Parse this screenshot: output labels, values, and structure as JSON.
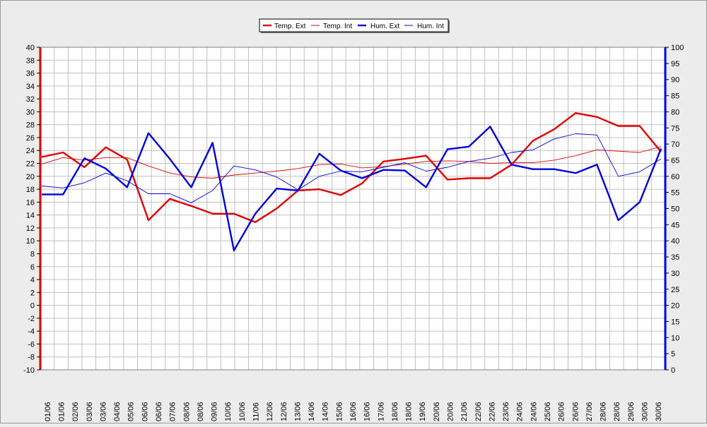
{
  "chart_data": {
    "type": "line",
    "categories": [
      "01/06",
      "01/06",
      "02/06",
      "03/06",
      "03/06",
      "04/06",
      "05/06",
      "06/06",
      "06/06",
      "07/06",
      "08/06",
      "08/06",
      "09/06",
      "10/06",
      "10/06",
      "11/06",
      "12/06",
      "12/06",
      "13/06",
      "14/06",
      "14/06",
      "15/06",
      "16/06",
      "16/06",
      "17/06",
      "18/06",
      "18/06",
      "19/06",
      "20/06",
      "20/06",
      "21/06",
      "22/06",
      "22/06",
      "23/06",
      "24/06",
      "24/06",
      "25/06",
      "26/06",
      "26/06",
      "27/06",
      "28/06",
      "28/06",
      "29/06",
      "30/06",
      "30/06"
    ],
    "x_label_step": 1,
    "y_left": {
      "min": -10,
      "max": 40,
      "step": 2
    },
    "y_right": {
      "min": 0,
      "max": 100,
      "step": 5
    },
    "grid": true,
    "legend_position": "top-center",
    "series": [
      {
        "name": "Temp. Ext",
        "axis": "left",
        "color": "#e00000",
        "thick": true,
        "points": [
          [
            0,
            23
          ],
          [
            1,
            23.7
          ],
          [
            2,
            21.4
          ],
          [
            3,
            24.5
          ],
          [
            4,
            22.6
          ],
          [
            5,
            13.2
          ],
          [
            6,
            16.5
          ],
          [
            7,
            15.4
          ],
          [
            8,
            14.2
          ],
          [
            9,
            14.2
          ],
          [
            10,
            12.9
          ],
          [
            11,
            15
          ],
          [
            12,
            17.8
          ],
          [
            13,
            18
          ],
          [
            14,
            17.1
          ],
          [
            15,
            18.9
          ],
          [
            16,
            22.3
          ],
          [
            17,
            22.7
          ],
          [
            18,
            23.2
          ],
          [
            19,
            19.5
          ],
          [
            20,
            19.7
          ],
          [
            21,
            19.7
          ],
          [
            22,
            21.8
          ],
          [
            23,
            25.5
          ],
          [
            24,
            27.3
          ],
          [
            25,
            29.8
          ],
          [
            26,
            29.2
          ],
          [
            27,
            27.8
          ],
          [
            28,
            27.8
          ],
          [
            29,
            23.8
          ]
        ]
      },
      {
        "name": "Temp. Int",
        "axis": "left",
        "color": "#e00000",
        "thick": false,
        "points": [
          [
            0,
            21.9
          ],
          [
            1,
            22.9
          ],
          [
            2,
            22.5
          ],
          [
            3,
            22.9
          ],
          [
            4,
            22.9
          ],
          [
            5,
            21.6
          ],
          [
            6,
            20.5
          ],
          [
            7,
            19.9
          ],
          [
            8,
            19.7
          ],
          [
            9,
            20.2
          ],
          [
            10,
            20.5
          ],
          [
            11,
            20.8
          ],
          [
            12,
            21.2
          ],
          [
            13,
            21.8
          ],
          [
            14,
            21.9
          ],
          [
            15,
            21.3
          ],
          [
            16,
            21.5
          ],
          [
            17,
            21.9
          ],
          [
            18,
            22.3
          ],
          [
            19,
            22.4
          ],
          [
            20,
            22.3
          ],
          [
            21,
            22
          ],
          [
            22,
            22.1
          ],
          [
            23,
            22.1
          ],
          [
            24,
            22.5
          ],
          [
            25,
            23.2
          ],
          [
            26,
            24.1
          ],
          [
            27,
            23.9
          ],
          [
            28,
            23.7
          ],
          [
            29,
            24.6
          ]
        ]
      },
      {
        "name": "Hum. Ext",
        "axis": "right",
        "color": "#0000dd",
        "thick": true,
        "points": [
          [
            0,
            54.4
          ],
          [
            1,
            54.4
          ],
          [
            2,
            65.6
          ],
          [
            3,
            62.4
          ],
          [
            4,
            56.6
          ],
          [
            5,
            73.4
          ],
          [
            6,
            65.4
          ],
          [
            7,
            56.6
          ],
          [
            8,
            70.4
          ],
          [
            9,
            37
          ],
          [
            10,
            48.4
          ],
          [
            11,
            56.2
          ],
          [
            12,
            55.6
          ],
          [
            13,
            67
          ],
          [
            14,
            61.8
          ],
          [
            15,
            59.4
          ],
          [
            16,
            62
          ],
          [
            17,
            61.8
          ],
          [
            18,
            56.6
          ],
          [
            19,
            68.4
          ],
          [
            20,
            69.2
          ],
          [
            21,
            75.4
          ],
          [
            22,
            63.6
          ],
          [
            23,
            62.2
          ],
          [
            24,
            62.2
          ],
          [
            25,
            61
          ],
          [
            26,
            63.6
          ],
          [
            27,
            46.4
          ],
          [
            28,
            52
          ],
          [
            29,
            68.6
          ]
        ]
      },
      {
        "name": "Hum. Int",
        "axis": "right",
        "color": "#0000dd",
        "thick": false,
        "points": [
          [
            0,
            57
          ],
          [
            1,
            56.4
          ],
          [
            2,
            58
          ],
          [
            3,
            61
          ],
          [
            4,
            58.6
          ],
          [
            5,
            54.6
          ],
          [
            6,
            54.6
          ],
          [
            7,
            51.8
          ],
          [
            8,
            55.6
          ],
          [
            9,
            63.2
          ],
          [
            10,
            62
          ],
          [
            11,
            59.8
          ],
          [
            12,
            55.8
          ],
          [
            13,
            60
          ],
          [
            14,
            61.6
          ],
          [
            15,
            61.4
          ],
          [
            16,
            62.8
          ],
          [
            17,
            64.2
          ],
          [
            18,
            61.6
          ],
          [
            19,
            62.8
          ],
          [
            20,
            64.6
          ],
          [
            21,
            65.6
          ],
          [
            22,
            67.4
          ],
          [
            23,
            68.2
          ],
          [
            24,
            71.6
          ],
          [
            25,
            73.2
          ],
          [
            26,
            72.8
          ],
          [
            27,
            60
          ],
          [
            28,
            61.4
          ],
          [
            29,
            65.4
          ]
        ]
      }
    ]
  }
}
